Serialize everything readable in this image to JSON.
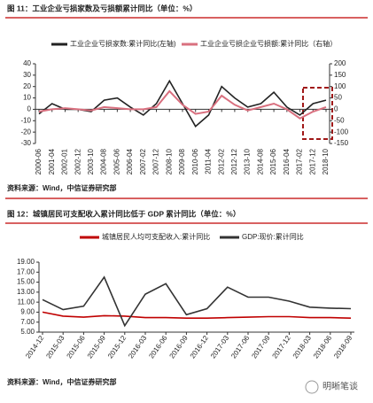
{
  "chart_data": [
    {
      "type": "line",
      "title": "图 11：工业企业亏损家数及亏损额累计同比（单位：%）",
      "source": "资料来源：Wind，中信证券研究部",
      "categories": [
        "2000-06",
        "2001-04",
        "2002-01",
        "2002-12",
        "2003-10",
        "2004-08",
        "2005-06",
        "2006-04",
        "2007-02",
        "2007-12",
        "2008-10",
        "2009-08",
        "2010-06",
        "2011-04",
        "2012-02",
        "2012-12",
        "2013-10",
        "2014-08",
        "2015-06",
        "2016-04",
        "2017-02",
        "2017-12",
        "2018-10"
      ],
      "series": [
        {
          "name": "工业企业亏损家数:累计同比(左轴)",
          "color": "#222222",
          "values": [
            -4,
            5,
            0,
            0,
            -2,
            8,
            10,
            2,
            -5,
            5,
            25,
            5,
            -15,
            -5,
            20,
            10,
            2,
            5,
            15,
            2,
            -5,
            5,
            8
          ]
        },
        {
          "name": "工业企业亏损企业亏损额:累计同比（右轴）",
          "color": "#d9707f",
          "axis": "y2",
          "values": [
            -10,
            0,
            5,
            0,
            -5,
            10,
            5,
            0,
            0,
            10,
            80,
            20,
            -20,
            -10,
            60,
            20,
            -5,
            10,
            25,
            0,
            -40,
            -10,
            10
          ]
        }
      ],
      "ylim": [
        -30,
        40
      ],
      "yticks": [
        -30,
        -20,
        -10,
        0,
        10,
        20,
        30,
        40
      ],
      "y2lim": [
        -150,
        200
      ],
      "y2ticks": [
        -150,
        -100,
        -50,
        0,
        50,
        100,
        150,
        200
      ],
      "grid": false
    },
    {
      "type": "line",
      "title": "图 12：城镇居民可支配收入累计同比低于 GDP 累计同比（单位：%）",
      "source": "资料来源：Wind，中信证券研究部",
      "categories": [
        "2014-12",
        "2015-03",
        "2015-06",
        "2015-09",
        "2015-12",
        "2016-03",
        "2016-06",
        "2016-09",
        "2016-12",
        "2017-03",
        "2017-06",
        "2017-09",
        "2017-12",
        "2018-03",
        "2018-06",
        "2018-09"
      ],
      "series": [
        {
          "name": "城镇居民人均可支配收入:累计同比",
          "color": "#c00000",
          "values": [
            9.0,
            8.2,
            8.0,
            8.3,
            8.2,
            7.9,
            7.9,
            7.8,
            7.8,
            7.9,
            8.0,
            8.1,
            8.1,
            7.9,
            7.9,
            7.8
          ]
        },
        {
          "name": "GDP:现价:累计同比",
          "color": "#333333",
          "values": [
            11.5,
            9.5,
            10.2,
            16.0,
            6.3,
            12.6,
            14.7,
            8.5,
            9.7,
            14.0,
            12.0,
            12.0,
            11.2,
            10.0,
            9.8,
            9.7
          ]
        }
      ],
      "ylim": [
        5,
        19
      ],
      "yticks": [
        {
          "value": 5,
          "label": "5.00"
        },
        {
          "value": 7,
          "label": "7.00"
        },
        {
          "value": 9,
          "label": "9.00"
        },
        {
          "value": 11,
          "label": "11.00"
        },
        {
          "value": 13,
          "label": "13.00"
        },
        {
          "value": 15,
          "label": "15.00"
        },
        {
          "value": 17,
          "label": "17.00"
        },
        {
          "value": 19,
          "label": "19.00"
        }
      ],
      "grid": false
    }
  ],
  "watermark": "明晰笔谈"
}
